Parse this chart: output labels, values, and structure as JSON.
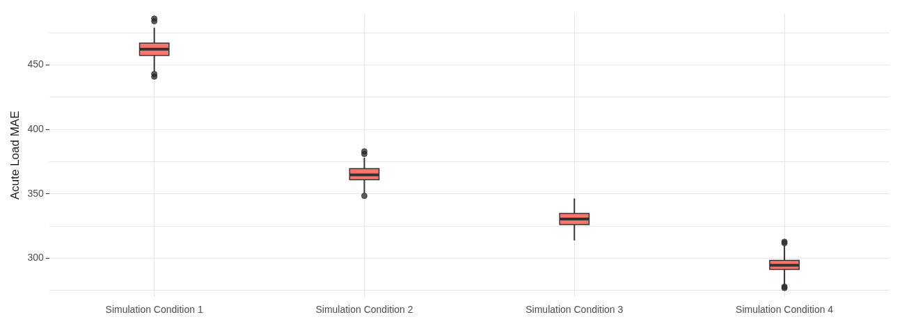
{
  "chart_data": {
    "type": "box",
    "ylabel": "Acute Load MAE",
    "categories": [
      "Simulation Condition 1",
      "Simulation Condition 2",
      "Simulation Condition 3",
      "Simulation Condition 4"
    ],
    "boxes": [
      {
        "low": 445,
        "q1": 457.5,
        "median": 462.3,
        "q3": 467,
        "high": 479,
        "outliers": [
          486,
          484,
          443,
          441
        ]
      },
      {
        "low": 350.5,
        "q1": 361,
        "median": 364.8,
        "q3": 369.6,
        "high": 378,
        "outliers": [
          383,
          381,
          348.5
        ]
      },
      {
        "low": 314,
        "q1": 326.2,
        "median": 330.5,
        "q3": 334.8,
        "high": 346.5
      },
      {
        "low": 279.6,
        "q1": 291.4,
        "median": 294.6,
        "q3": 298.4,
        "high": 310,
        "outliers": [
          312.9,
          311.8,
          278,
          277
        ]
      }
    ],
    "color": "#f8766d",
    "ylim": [
      270,
      490
    ],
    "yticks": [
      {
        "value": 275,
        "label": null
      },
      300,
      {
        "value": 325,
        "label": null
      },
      350,
      {
        "value": 375,
        "label": null
      },
      400,
      {
        "value": 425,
        "label": null
      },
      450,
      {
        "value": 475,
        "label": null
      }
    ],
    "grid": true
  }
}
